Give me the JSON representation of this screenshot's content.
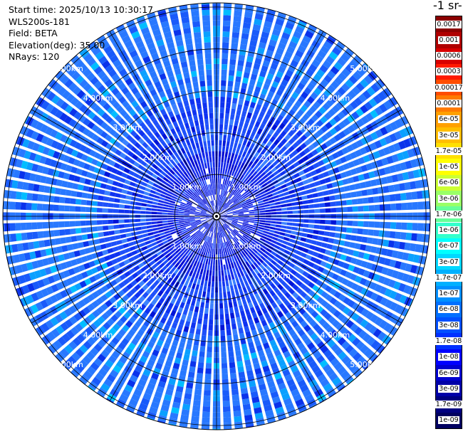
{
  "header": {
    "start_time": "Start time: 2025/10/13 10:30:17",
    "instrument": "WLS200s-181",
    "field": "Field: BETA",
    "elevation": "Elevation(deg): 35.00",
    "nrays": "NRays: 120"
  },
  "colorbar": {
    "title": "-1 sr-",
    "labels": [
      "0.0017",
      "0.001",
      "0.0006",
      "0.0003",
      "0.00017",
      "0.0001",
      "6e-05",
      "3e-05",
      "1.7e-05",
      "1e-05",
      "6e-06",
      "3e-06",
      "1.7e-06",
      "1e-06",
      "6e-07",
      "3e-07",
      "1.7e-07",
      "1e-07",
      "6e-08",
      "3e-08",
      "1.7e-08",
      "1e-08",
      "6e-09",
      "3e-09",
      "1.7e-09",
      "1e-09"
    ],
    "colors": [
      "#8b0000",
      "#b00000",
      "#d80000",
      "#ff1a00",
      "#ff4d00",
      "#ff7a00",
      "#ffa000",
      "#ffbe00",
      "#ffe000",
      "#ffff00",
      "#ccff33",
      "#99ff66",
      "#66ff99",
      "#33ffcc",
      "#00ffff",
      "#00d8ff",
      "#00b0ff",
      "#0090ff",
      "#0070ff",
      "#0050ff",
      "#0030ff",
      "#0000ff",
      "#0000d0",
      "#0000a8",
      "#000080",
      "#000060"
    ]
  },
  "chart_data": {
    "type": "heatmap",
    "projection": "polar PPI",
    "field": "BETA",
    "elevation_deg": 35.0,
    "nrays": 120,
    "range_rings_km": [
      1,
      2,
      3,
      4,
      5
    ],
    "ring_labels": [
      "1.00km",
      "2.00km",
      "3.00km",
      "4.00km",
      "5.00km"
    ],
    "max_range_km": 5.1,
    "azimuth_lines_deg": [
      0,
      30,
      60,
      90,
      120,
      150,
      180,
      210,
      240,
      270,
      300,
      330
    ],
    "colorscale": "log",
    "value_range": [
      1e-09,
      0.0017
    ],
    "typical_values": {
      "inner_1km": 1e-08,
      "middle_2km": 1.7e-08,
      "outer_5km": 3e-08
    },
    "grid": true
  }
}
